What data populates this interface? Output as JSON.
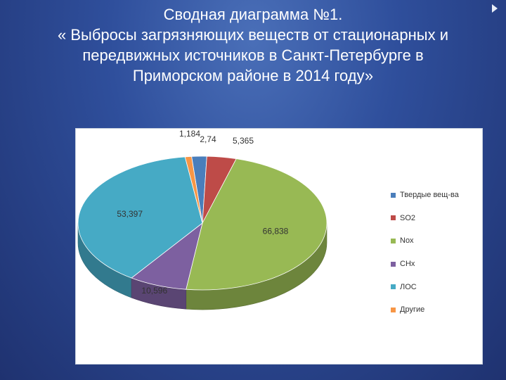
{
  "slide": {
    "title_lines": [
      "Сводная диаграмма №1.",
      "« Выбросы загрязняющих веществ от стационарных и",
      "передвижных источников в Санкт-Петербурге в",
      "Приморском районе в 2014 году»"
    ]
  },
  "chart_data": {
    "type": "pie",
    "style": "3d",
    "labels": [
      "Твердые вещ-ва",
      "SO2",
      "Nox",
      "CHx",
      "ЛОС",
      "Другие"
    ],
    "values": [
      2.74,
      5.365,
      66.838,
      10.596,
      53.397,
      1.184
    ],
    "value_labels": [
      "2,74",
      "5,365",
      "66,838",
      "10,596",
      "53,397",
      "1,184"
    ],
    "colors": [
      "#4a7ebb",
      "#be4b48",
      "#98b954",
      "#7d60a0",
      "#46aac5",
      "#f79646"
    ],
    "legend_position": "right"
  }
}
